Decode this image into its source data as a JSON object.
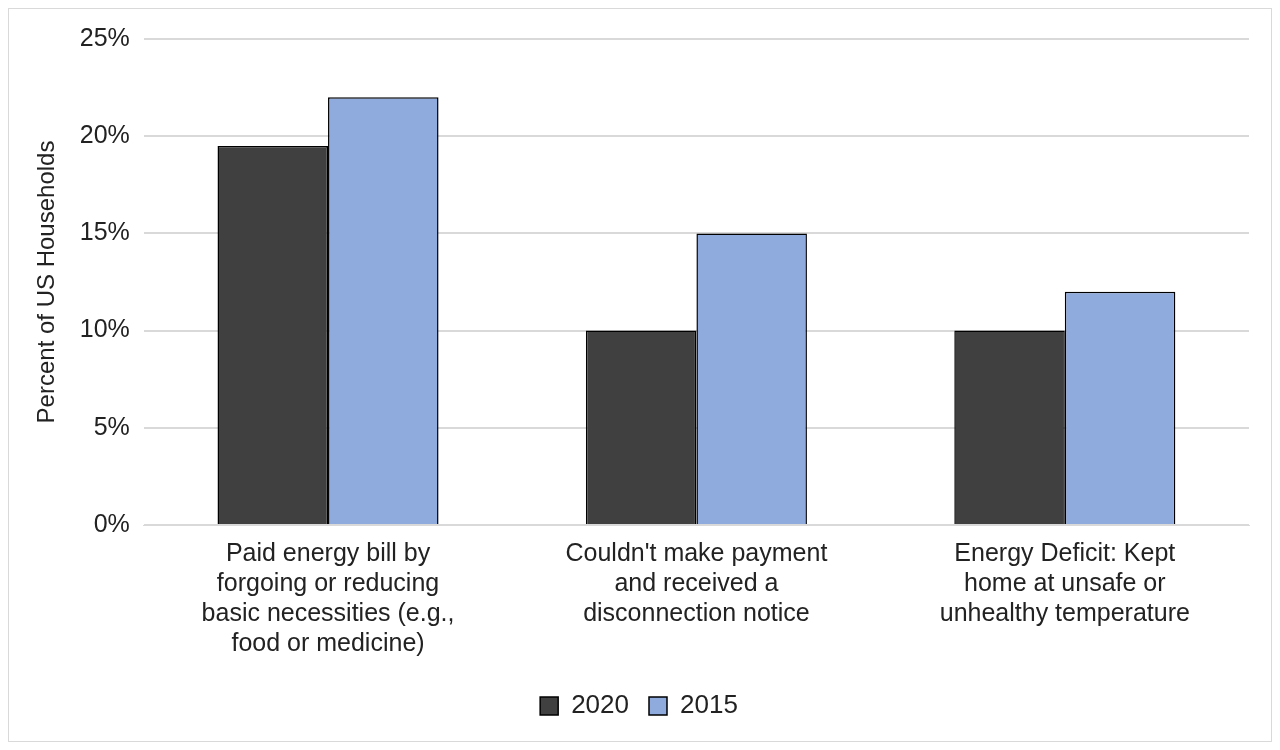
{
  "chart_data": {
    "type": "bar",
    "ylabel": "Percent of US Households",
    "categories": [
      "Paid energy bill by forgoing or reducing basic necessities (e.g., food or medicine)",
      "Couldn't make payment and received a disconnection notice",
      "Energy Deficit: Kept home at unsafe or unhealthy temperature"
    ],
    "series": [
      {
        "name": "2020",
        "color": "#404040",
        "values": [
          19.5,
          10,
          10
        ]
      },
      {
        "name": "2015",
        "color": "#8faadc",
        "values": [
          22,
          15,
          12
        ]
      }
    ],
    "ylim": [
      0,
      25
    ],
    "yticks": [
      {
        "value": 0,
        "label": "0%"
      },
      {
        "value": 5,
        "label": "5%"
      },
      {
        "value": 10,
        "label": "10%"
      },
      {
        "value": 15,
        "label": "15%"
      },
      {
        "value": 20,
        "label": "20%"
      },
      {
        "value": 25,
        "label": "25%"
      }
    ],
    "grid": "y",
    "legend": "bottom"
  }
}
